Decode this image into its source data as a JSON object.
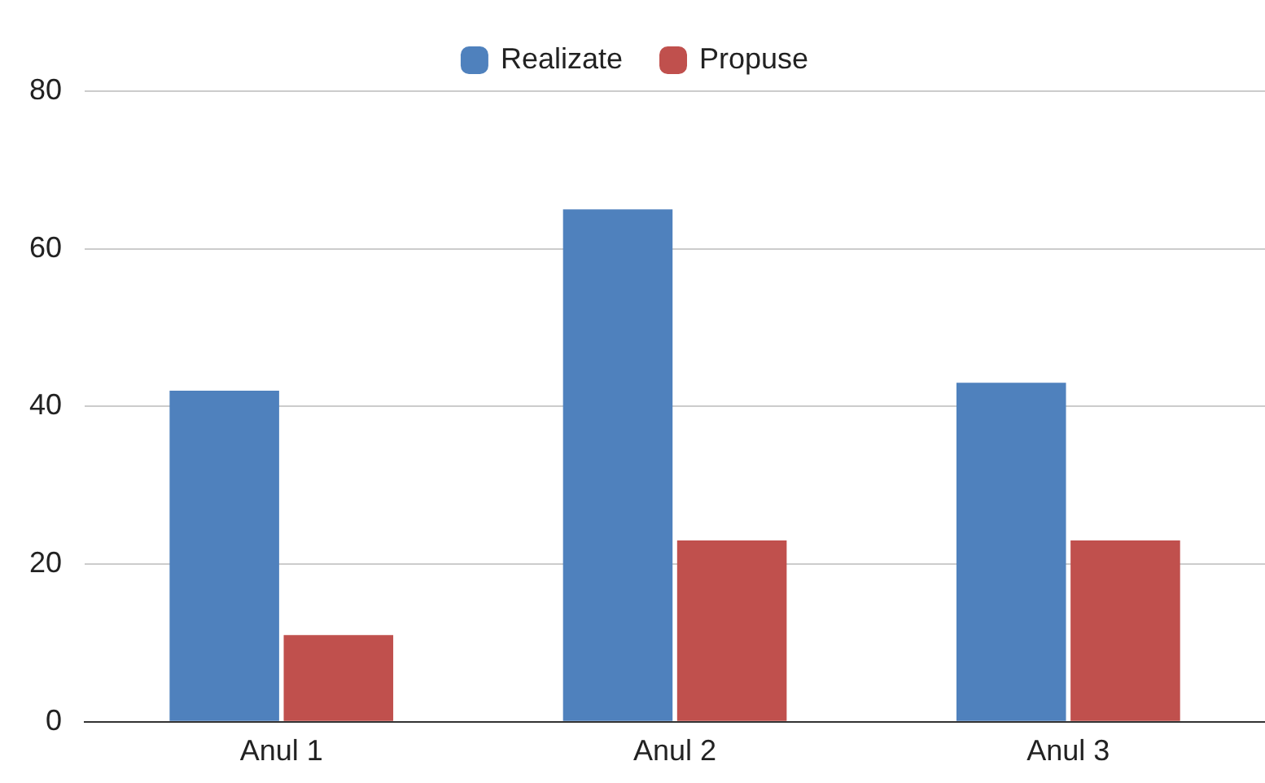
{
  "chart_data": {
    "type": "bar",
    "categories": [
      "Anul 1",
      "Anul 2",
      "Anul 3"
    ],
    "series": [
      {
        "name": "Realizate",
        "color": "#4f81bd",
        "values": [
          42,
          65,
          43
        ]
      },
      {
        "name": "Propuse",
        "color": "#c0504d",
        "values": [
          11,
          23,
          23
        ]
      }
    ],
    "ylim": [
      0,
      80
    ],
    "yticks": [
      0,
      20,
      40,
      60,
      80
    ],
    "grid": "y",
    "legend": "top"
  }
}
